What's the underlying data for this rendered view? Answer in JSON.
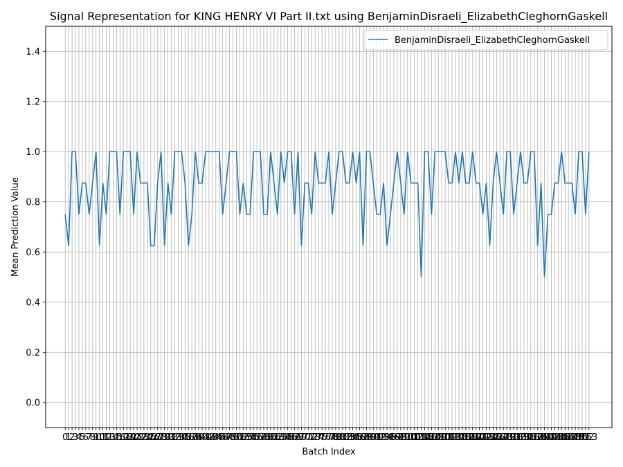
{
  "chart_data": {
    "type": "line",
    "title": "Signal Representation for KING HENRY VI Part II.txt using BenjaminDisraeli_ElizabethCleghornGaskell",
    "xlabel": "Batch Index",
    "ylabel": "Mean Prediction Value",
    "xlim": [
      -5.7,
      159.7
    ],
    "ylim": [
      -0.1,
      1.5
    ],
    "y_ticks": [
      0.0,
      0.2,
      0.4,
      0.6,
      0.8,
      1.0,
      1.2,
      1.4
    ],
    "y_tick_labels": [
      "0.0",
      "0.2",
      "0.4",
      "0.6",
      "0.8",
      "1.0",
      "1.2",
      "1.4"
    ],
    "x_ticks_count": 154,
    "grid": true,
    "legend_position": "top-right",
    "color": "#1f77b4",
    "series": [
      {
        "name": "BenjaminDisraeli_ElizabethCleghornGaskell",
        "values": [
          0.75,
          0.625,
          1.0,
          1.0,
          0.75,
          0.875,
          0.875,
          0.75,
          0.875,
          1.0,
          0.625,
          0.875,
          0.75,
          1.0,
          1.0,
          1.0,
          0.75,
          1.0,
          1.0,
          1.0,
          0.75,
          1.0,
          0.875,
          0.875,
          0.875,
          0.625,
          0.625,
          0.875,
          1.0,
          0.625,
          0.875,
          0.75,
          1.0,
          1.0,
          1.0,
          0.875,
          0.625,
          0.75,
          1.0,
          0.875,
          0.875,
          1.0,
          1.0,
          1.0,
          1.0,
          1.0,
          0.75,
          0.875,
          1.0,
          1.0,
          1.0,
          0.75,
          0.875,
          0.75,
          0.75,
          1.0,
          1.0,
          1.0,
          0.75,
          0.75,
          1.0,
          0.875,
          0.75,
          1.0,
          0.875,
          1.0,
          1.0,
          0.75,
          1.0,
          0.625,
          0.875,
          0.875,
          0.75,
          1.0,
          0.875,
          0.875,
          0.875,
          1.0,
          0.75,
          0.875,
          1.0,
          1.0,
          0.875,
          0.875,
          1.0,
          0.875,
          1.0,
          0.625,
          1.0,
          1.0,
          0.875,
          0.75,
          0.75,
          0.875,
          0.625,
          0.75,
          0.875,
          1.0,
          0.875,
          0.75,
          1.0,
          0.875,
          0.875,
          0.875,
          0.5,
          1.0,
          1.0,
          0.75,
          1.0,
          1.0,
          1.0,
          1.0,
          0.875,
          0.875,
          1.0,
          0.875,
          1.0,
          0.875,
          0.875,
          1.0,
          0.875,
          0.875,
          0.75,
          0.875,
          0.625,
          0.875,
          1.0,
          0.875,
          0.75,
          1.0,
          1.0,
          0.75,
          0.875,
          1.0,
          0.875,
          0.875,
          1.0,
          1.0,
          0.625,
          0.875,
          0.5,
          0.75,
          0.75,
          0.875,
          0.875,
          1.0,
          0.875,
          0.875,
          0.875,
          0.75,
          1.0,
          1.0,
          0.75,
          1.0
        ]
      }
    ]
  }
}
